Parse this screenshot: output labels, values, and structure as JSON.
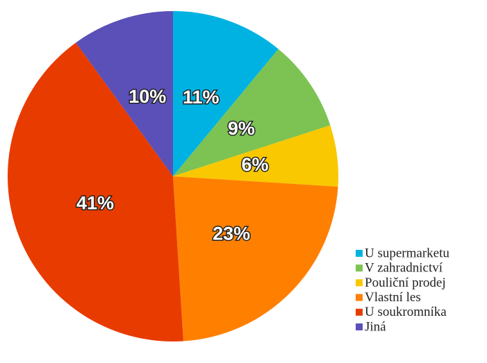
{
  "chart_data": {
    "type": "pie",
    "categories": [
      "U supermarketu",
      "V zahradnictví",
      "Pouliční prodej",
      "Vlastní les",
      "U soukromníka",
      "Jiná"
    ],
    "values": [
      11,
      9,
      6,
      23,
      41,
      10
    ],
    "value_labels": [
      "11%",
      "9%",
      "6%",
      "23%",
      "41%",
      "10%"
    ],
    "colors": [
      "#00b2e2",
      "#7cc353",
      "#f9c800",
      "#ff8000",
      "#e83b00",
      "#5a50b8"
    ],
    "legend": "bottom-right"
  }
}
